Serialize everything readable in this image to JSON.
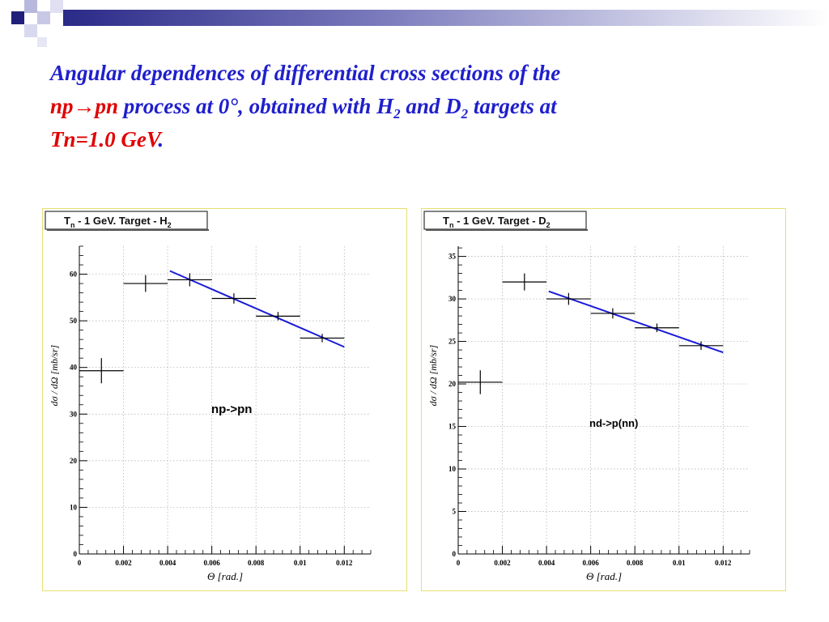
{
  "slide": {
    "colors": {
      "title": "#1f1fcc",
      "highlight": "#e00000",
      "fit_line": "#1b1bd6",
      "panel_border": "#e8e070"
    },
    "title": {
      "line1": "Angular dependences of differential cross sections of the",
      "line2_red": "np→pn",
      "line2_a": " process at 0°, obtained with H",
      "line2_sub1": "2",
      "line2_b": " and D",
      "line2_sub2": "2",
      "line2_c": " targets at",
      "line3_red": "Tn=1.0 GeV",
      "line3_dot": "."
    }
  },
  "chart_data": [
    {
      "type": "scatter",
      "header": {
        "prefix": "T",
        "sub_n": "n",
        "mid": " - 1 GeV.    Target - H",
        "sub_t": "2"
      },
      "annotation": "np->pn",
      "xlabel": "Θ [rad.]",
      "ylabel": "dσ / dΩ [mb/sr]",
      "xlim": [
        0,
        0.0132
      ],
      "ylim": [
        0,
        66
      ],
      "xticks": [
        0,
        0.002,
        0.004,
        0.006,
        0.008,
        0.01,
        0.012
      ],
      "xtick_labels": [
        "0",
        "0.002",
        "0.004",
        "0.006",
        "0.008",
        "0.01",
        "0.012"
      ],
      "yticks": [
        0,
        10,
        20,
        30,
        40,
        50,
        60
      ],
      "ytick_labels": [
        "0",
        "10",
        "20",
        "30",
        "40",
        "50",
        "60"
      ],
      "grid": true,
      "points": [
        {
          "x": 0.001,
          "xerr": 0.001,
          "y": 39.3,
          "yerr": 2.7
        },
        {
          "x": 0.003,
          "xerr": 0.001,
          "y": 58.0,
          "yerr": 1.8
        },
        {
          "x": 0.005,
          "xerr": 0.001,
          "y": 58.8,
          "yerr": 1.4
        },
        {
          "x": 0.007,
          "xerr": 0.001,
          "y": 54.8,
          "yerr": 1.1
        },
        {
          "x": 0.009,
          "xerr": 0.001,
          "y": 51.0,
          "yerr": 0.9
        },
        {
          "x": 0.011,
          "xerr": 0.001,
          "y": 46.3,
          "yerr": 0.9
        }
      ],
      "fit": {
        "x": [
          0.0041,
          0.012
        ],
        "y": [
          60.7,
          44.4
        ]
      }
    },
    {
      "type": "scatter",
      "header": {
        "prefix": "T",
        "sub_n": "n",
        "mid": " - 1 GeV.    Target - D",
        "sub_t": "2"
      },
      "annotation": "nd->p(nn)",
      "xlabel": "Θ [rad.]",
      "ylabel": "dσ / dΩ [mb/sr]",
      "xlim": [
        0,
        0.0132
      ],
      "ylim": [
        0,
        36.2
      ],
      "xticks": [
        0,
        0.002,
        0.004,
        0.006,
        0.008,
        0.01,
        0.012
      ],
      "xtick_labels": [
        "0",
        "0.002",
        "0.004",
        "0.006",
        "0.008",
        "0.01",
        "0.012"
      ],
      "yticks": [
        0,
        5,
        10,
        15,
        20,
        25,
        30,
        35
      ],
      "ytick_labels": [
        "0",
        "5",
        "10",
        "15",
        "20",
        "25",
        "30",
        "35"
      ],
      "grid": true,
      "points": [
        {
          "x": 0.001,
          "xerr": 0.001,
          "y": 20.2,
          "yerr": 1.4
        },
        {
          "x": 0.003,
          "xerr": 0.001,
          "y": 32.0,
          "yerr": 1.0
        },
        {
          "x": 0.005,
          "xerr": 0.001,
          "y": 30.0,
          "yerr": 0.7
        },
        {
          "x": 0.007,
          "xerr": 0.001,
          "y": 28.3,
          "yerr": 0.6
        },
        {
          "x": 0.009,
          "xerr": 0.001,
          "y": 26.6,
          "yerr": 0.5
        },
        {
          "x": 0.011,
          "xerr": 0.001,
          "y": 24.5,
          "yerr": 0.5
        }
      ],
      "fit": {
        "x": [
          0.0041,
          0.012
        ],
        "y": [
          30.9,
          23.7
        ]
      }
    }
  ]
}
